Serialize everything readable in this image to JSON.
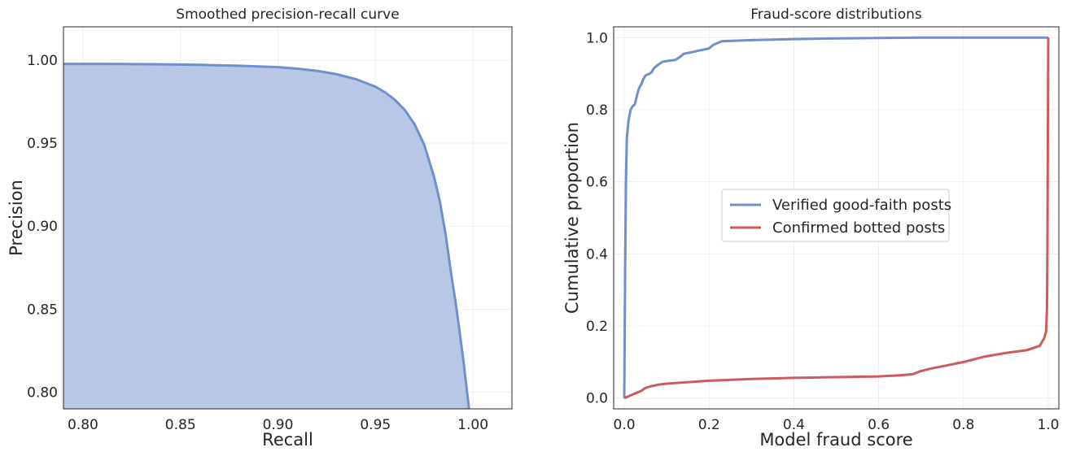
{
  "chart_data": [
    {
      "type": "area",
      "title": "Smoothed precision-recall curve",
      "xlabel": "Recall",
      "ylabel": "Precision",
      "xlim": [
        0.79,
        1.02
      ],
      "ylim": [
        0.79,
        1.02
      ],
      "xticks": [
        0.8,
        0.85,
        0.9,
        0.95,
        1.0
      ],
      "xtick_labels": [
        "0.80",
        "0.85",
        "0.90",
        "0.95",
        "1.00"
      ],
      "yticks": [
        0.8,
        0.85,
        0.9,
        0.95,
        1.0
      ],
      "ytick_labels": [
        "0.80",
        "0.85",
        "0.90",
        "0.95",
        "1.00"
      ],
      "grid": true,
      "colors": {
        "line": "#6f90c8",
        "fill": "#b7c7e5"
      },
      "series": [
        {
          "x": [
            0.79,
            0.8,
            0.82,
            0.84,
            0.86,
            0.88,
            0.9,
            0.91,
            0.92,
            0.93,
            0.94,
            0.95,
            0.955,
            0.96,
            0.965,
            0.97,
            0.975,
            0.98,
            0.983,
            0.986,
            0.989,
            0.991,
            0.993,
            0.995,
            0.996,
            0.997,
            0.998
          ],
          "y": [
            0.9977,
            0.9977,
            0.9976,
            0.9974,
            0.9971,
            0.9966,
            0.9957,
            0.9948,
            0.9935,
            0.9915,
            0.9885,
            0.984,
            0.9805,
            0.976,
            0.97,
            0.9615,
            0.949,
            0.93,
            0.915,
            0.895,
            0.87,
            0.855,
            0.838,
            0.82,
            0.81,
            0.8,
            0.79
          ]
        }
      ]
    },
    {
      "type": "line",
      "title": "Fraud-score distributions",
      "xlabel": "Model fraud score",
      "ylabel": "Cumulative proportion",
      "xlim": [
        -0.025,
        1.025
      ],
      "ylim": [
        -0.03,
        1.03
      ],
      "xticks": [
        0.0,
        0.2,
        0.4,
        0.6,
        0.8,
        1.0
      ],
      "xtick_labels": [
        "0.0",
        "0.2",
        "0.4",
        "0.6",
        "0.8",
        "1.0"
      ],
      "yticks": [
        0.0,
        0.2,
        0.4,
        0.6,
        0.8,
        1.0
      ],
      "ytick_labels": [
        "0.0",
        "0.2",
        "0.4",
        "0.6",
        "0.8",
        "1.0"
      ],
      "grid": true,
      "legend": {
        "placement": "center"
      },
      "series": [
        {
          "name": "Verified good-faith posts",
          "color": "#6f90c8",
          "x": [
            0.0,
            0.002,
            0.004,
            0.006,
            0.01,
            0.015,
            0.02,
            0.025,
            0.03,
            0.035,
            0.04,
            0.045,
            0.05,
            0.06,
            0.065,
            0.07,
            0.075,
            0.08,
            0.09,
            0.1,
            0.12,
            0.13,
            0.14,
            0.16,
            0.18,
            0.2,
            0.21,
            0.22,
            0.23,
            0.3,
            0.4,
            0.5,
            0.6,
            0.7,
            0.8,
            0.9,
            1.0
          ],
          "y": [
            0.0,
            0.35,
            0.6,
            0.72,
            0.77,
            0.8,
            0.81,
            0.815,
            0.84,
            0.86,
            0.87,
            0.885,
            0.895,
            0.9,
            0.905,
            0.915,
            0.92,
            0.925,
            0.933,
            0.935,
            0.938,
            0.945,
            0.955,
            0.96,
            0.965,
            0.97,
            0.98,
            0.985,
            0.99,
            0.993,
            0.996,
            0.998,
            0.999,
            1.0,
            1.0,
            1.0,
            1.0
          ]
        },
        {
          "name": "Confirmed botted posts",
          "color": "#cc5a5e",
          "x": [
            0.0,
            0.02,
            0.04,
            0.05,
            0.06,
            0.08,
            0.1,
            0.15,
            0.2,
            0.3,
            0.4,
            0.5,
            0.6,
            0.65,
            0.68,
            0.7,
            0.72,
            0.75,
            0.8,
            0.85,
            0.9,
            0.95,
            0.98,
            0.99,
            0.995,
            0.997,
            0.998,
            0.999,
            1.0
          ],
          "y": [
            0.0,
            0.01,
            0.02,
            0.028,
            0.032,
            0.037,
            0.04,
            0.044,
            0.048,
            0.053,
            0.056,
            0.058,
            0.06,
            0.063,
            0.066,
            0.075,
            0.081,
            0.088,
            0.1,
            0.115,
            0.125,
            0.133,
            0.145,
            0.165,
            0.185,
            0.25,
            0.4,
            0.7,
            1.0
          ]
        }
      ]
    }
  ]
}
